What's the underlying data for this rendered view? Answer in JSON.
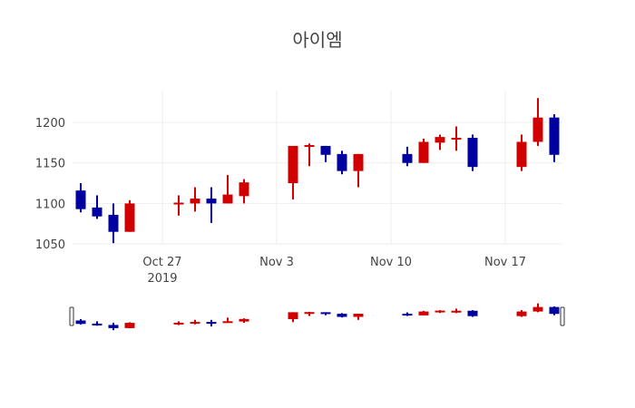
{
  "title": "아이엠",
  "colors": {
    "increasing": "#0000a0",
    "decreasing": "#d00000",
    "grid": "#eeeeee"
  },
  "chart_data": {
    "type": "candlestick",
    "title": "아이엠",
    "xlabel": "",
    "ylabel": "",
    "ylim": [
      1040,
      1240
    ],
    "yticks": [
      1050,
      1100,
      1150,
      1200
    ],
    "xticks": [
      "Oct 27\n2019",
      "Nov 3",
      "Nov 10",
      "Nov 17"
    ],
    "grid": true,
    "rangeslider": true,
    "candles": [
      {
        "date": "2019-10-22",
        "open": 1116,
        "high": 1125,
        "low": 1089,
        "close": 1093
      },
      {
        "date": "2019-10-23",
        "open": 1095,
        "high": 1110,
        "low": 1081,
        "close": 1084
      },
      {
        "date": "2019-10-24",
        "open": 1086,
        "high": 1100,
        "low": 1051,
        "close": 1065
      },
      {
        "date": "2019-10-25",
        "open": 1065,
        "high": 1104,
        "low": 1065,
        "close": 1100
      },
      {
        "date": "2019-10-28",
        "open": 1100,
        "high": 1110,
        "low": 1085,
        "close": 1101
      },
      {
        "date": "2019-10-29",
        "open": 1100,
        "high": 1120,
        "low": 1090,
        "close": 1106
      },
      {
        "date": "2019-10-30",
        "open": 1106,
        "high": 1120,
        "low": 1076,
        "close": 1100
      },
      {
        "date": "2019-10-31",
        "open": 1100,
        "high": 1135,
        "low": 1100,
        "close": 1111
      },
      {
        "date": "2019-11-01",
        "open": 1109,
        "high": 1130,
        "low": 1100,
        "close": 1126
      },
      {
        "date": "2019-11-04",
        "open": 1125,
        "high": 1171,
        "low": 1105,
        "close": 1171
      },
      {
        "date": "2019-11-05",
        "open": 1170,
        "high": 1174,
        "low": 1146,
        "close": 1172
      },
      {
        "date": "2019-11-06",
        "open": 1171,
        "high": 1171,
        "low": 1151,
        "close": 1160
      },
      {
        "date": "2019-11-07",
        "open": 1161,
        "high": 1165,
        "low": 1136,
        "close": 1140
      },
      {
        "date": "2019-11-08",
        "open": 1140,
        "high": 1161,
        "low": 1120,
        "close": 1161
      },
      {
        "date": "2019-11-11",
        "open": 1161,
        "high": 1170,
        "low": 1146,
        "close": 1150
      },
      {
        "date": "2019-11-12",
        "open": 1150,
        "high": 1180,
        "low": 1150,
        "close": 1176
      },
      {
        "date": "2019-11-13",
        "open": 1175,
        "high": 1185,
        "low": 1166,
        "close": 1182
      },
      {
        "date": "2019-11-14",
        "open": 1180,
        "high": 1195,
        "low": 1165,
        "close": 1181
      },
      {
        "date": "2019-11-15",
        "open": 1181,
        "high": 1185,
        "low": 1140,
        "close": 1145
      },
      {
        "date": "2019-11-18",
        "open": 1145,
        "high": 1185,
        "low": 1140,
        "close": 1176
      },
      {
        "date": "2019-11-19",
        "open": 1176,
        "high": 1230,
        "low": 1171,
        "close": 1206
      },
      {
        "date": "2019-11-20",
        "open": 1206,
        "high": 1210,
        "low": 1151,
        "close": 1160
      }
    ],
    "color_rule": "blue = close < open (down), red = close >= open (up)"
  }
}
